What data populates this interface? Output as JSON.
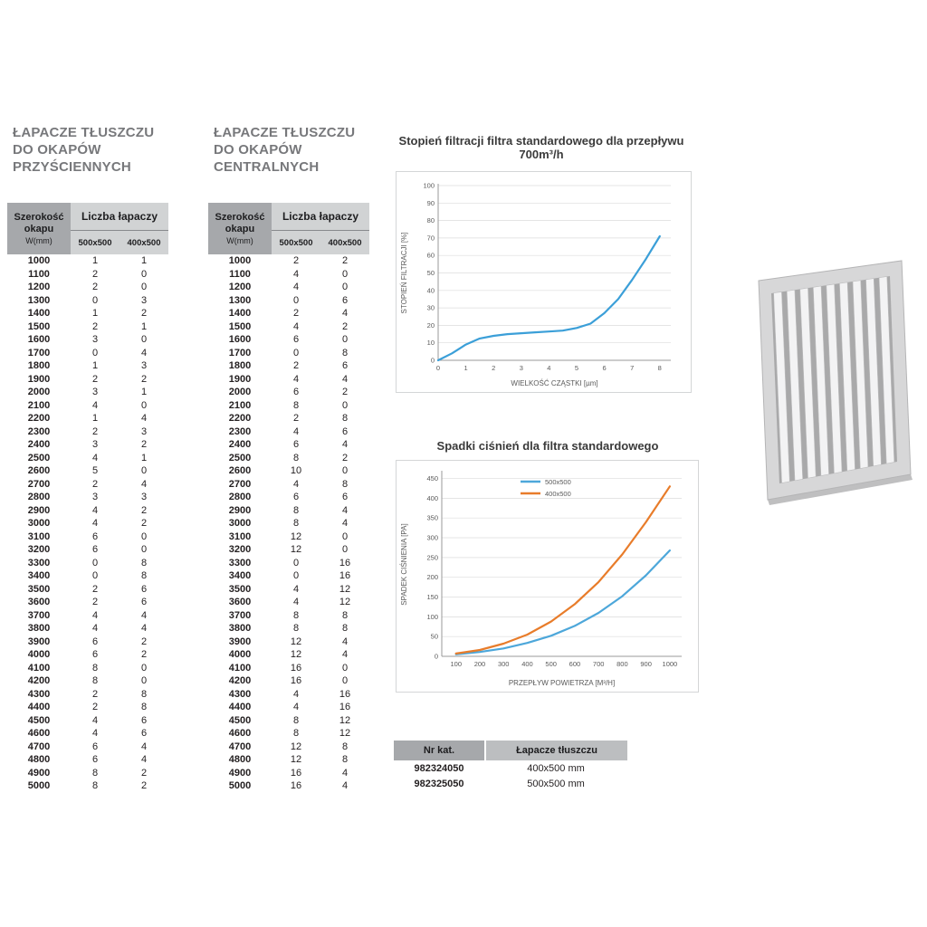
{
  "table_header": {
    "col_width_1": "Szerokość",
    "col_width_2": "okapu",
    "col_width_3": "W(mm)",
    "col_count": "Liczba łapaczy",
    "sub_500": "500x500",
    "sub_400": "400x500"
  },
  "wall_table": {
    "title_lines": [
      "ŁAPACZE TŁUSZCZU",
      "DO OKAPÓW",
      "PRZYŚCIENNYCH"
    ],
    "rows": [
      [
        1000,
        1,
        1
      ],
      [
        1100,
        2,
        0
      ],
      [
        1200,
        2,
        0
      ],
      [
        1300,
        0,
        3
      ],
      [
        1400,
        1,
        2
      ],
      [
        1500,
        2,
        1
      ],
      [
        1600,
        3,
        0
      ],
      [
        1700,
        0,
        4
      ],
      [
        1800,
        1,
        3
      ],
      [
        1900,
        2,
        2
      ],
      [
        2000,
        3,
        1
      ],
      [
        2100,
        4,
        0
      ],
      [
        2200,
        1,
        4
      ],
      [
        2300,
        2,
        3
      ],
      [
        2400,
        3,
        2
      ],
      [
        2500,
        4,
        1
      ],
      [
        2600,
        5,
        0
      ],
      [
        2700,
        2,
        4
      ],
      [
        2800,
        3,
        3
      ],
      [
        2900,
        4,
        2
      ],
      [
        3000,
        4,
        2
      ],
      [
        3100,
        6,
        0
      ],
      [
        3200,
        6,
        0
      ],
      [
        3300,
        0,
        8
      ],
      [
        3400,
        0,
        8
      ],
      [
        3500,
        2,
        6
      ],
      [
        3600,
        2,
        6
      ],
      [
        3700,
        4,
        4
      ],
      [
        3800,
        4,
        4
      ],
      [
        3900,
        6,
        2
      ],
      [
        4000,
        6,
        2
      ],
      [
        4100,
        8,
        0
      ],
      [
        4200,
        8,
        0
      ],
      [
        4300,
        2,
        8
      ],
      [
        4400,
        2,
        8
      ],
      [
        4500,
        4,
        6
      ],
      [
        4600,
        4,
        6
      ],
      [
        4700,
        6,
        4
      ],
      [
        4800,
        6,
        4
      ],
      [
        4900,
        8,
        2
      ],
      [
        5000,
        8,
        2
      ]
    ]
  },
  "central_table": {
    "title_lines": [
      "ŁAPACZE TŁUSZCZU",
      "DO OKAPÓW",
      "CENTRALNYCH"
    ],
    "rows": [
      [
        1000,
        2,
        2
      ],
      [
        1100,
        4,
        0
      ],
      [
        1200,
        4,
        0
      ],
      [
        1300,
        0,
        6
      ],
      [
        1400,
        2,
        4
      ],
      [
        1500,
        4,
        2
      ],
      [
        1600,
        6,
        0
      ],
      [
        1700,
        0,
        8
      ],
      [
        1800,
        2,
        6
      ],
      [
        1900,
        4,
        4
      ],
      [
        2000,
        6,
        2
      ],
      [
        2100,
        8,
        0
      ],
      [
        2200,
        2,
        8
      ],
      [
        2300,
        4,
        6
      ],
      [
        2400,
        6,
        4
      ],
      [
        2500,
        8,
        2
      ],
      [
        2600,
        10,
        0
      ],
      [
        2700,
        4,
        8
      ],
      [
        2800,
        6,
        6
      ],
      [
        2900,
        8,
        4
      ],
      [
        3000,
        8,
        4
      ],
      [
        3100,
        12,
        0
      ],
      [
        3200,
        12,
        0
      ],
      [
        3300,
        0,
        16
      ],
      [
        3400,
        0,
        16
      ],
      [
        3500,
        4,
        12
      ],
      [
        3600,
        4,
        12
      ],
      [
        3700,
        8,
        8
      ],
      [
        3800,
        8,
        8
      ],
      [
        3900,
        12,
        4
      ],
      [
        4000,
        12,
        4
      ],
      [
        4100,
        16,
        0
      ],
      [
        4200,
        16,
        0
      ],
      [
        4300,
        4,
        16
      ],
      [
        4400,
        4,
        16
      ],
      [
        4500,
        8,
        12
      ],
      [
        4600,
        8,
        12
      ],
      [
        4700,
        12,
        8
      ],
      [
        4800,
        12,
        8
      ],
      [
        4900,
        16,
        4
      ],
      [
        5000,
        16,
        4
      ]
    ]
  },
  "catalog_table": {
    "headers": [
      "Nr kat.",
      "Łapacze tłuszczu"
    ],
    "rows": [
      [
        "982324050",
        "400x500 mm"
      ],
      [
        "982325050",
        "500x500 mm"
      ]
    ]
  },
  "product_image": {
    "name": "baffle-grease-filter-photo",
    "frame_color": "#d7d7d8",
    "slat_color": "#f3f3f4"
  },
  "colors": {
    "header_dark_gray": "#a6a8ab",
    "header_light_gray": "#d1d3d4",
    "catalog_header_gray": "#bcbec0",
    "title_gray": "#77787b",
    "series_blue": "#4da7da",
    "series_orange": "#e87c2a"
  },
  "chart_data": [
    {
      "type": "line",
      "title": "Stopień filtracji filtra standardowego dla przepływu 700m³/h",
      "xlabel": "WIELKOŚĆ CZĄSTKI [µm]",
      "ylabel": "STOPIEŃ FILTRACJI [%]",
      "xlim": [
        0,
        8.4
      ],
      "ylim": [
        0,
        100
      ],
      "xticks": [
        0,
        1,
        2,
        3,
        4,
        5,
        6,
        7,
        8
      ],
      "yticks": [
        0,
        10,
        20,
        30,
        40,
        50,
        60,
        70,
        80,
        90,
        100
      ],
      "grid": "horizontal",
      "legend": null,
      "series": [
        {
          "name": "stopień filtracji",
          "color": "#3b9fd8",
          "x": [
            0,
            0.5,
            1,
            1.5,
            2,
            2.5,
            3,
            3.5,
            4,
            4.5,
            5,
            5.5,
            6,
            6.5,
            7,
            7.5,
            8
          ],
          "y": [
            0,
            4,
            9,
            12.5,
            14,
            15,
            15.5,
            16,
            16.5,
            17,
            18.5,
            21,
            27,
            35,
            46,
            58,
            71
          ]
        }
      ]
    },
    {
      "type": "line",
      "title": "Spadki ciśnień dla filtra standardowego",
      "xlabel": "PRZEPŁYW POWIETRZA [M³/H]",
      "ylabel": "SPADEK CIŚNIENIA [PA]",
      "xlim": [
        40,
        1050
      ],
      "ylim": [
        0,
        465
      ],
      "xticks": [
        100,
        200,
        300,
        400,
        500,
        600,
        700,
        800,
        900,
        1000
      ],
      "yticks": [
        0,
        50,
        100,
        150,
        200,
        250,
        300,
        350,
        400,
        450
      ],
      "grid": "horizontal",
      "legend": [
        "500x500",
        "400x500"
      ],
      "legend_position": "top-center",
      "series": [
        {
          "name": "500x500",
          "color": "#4da7da",
          "x": [
            100,
            200,
            300,
            400,
            500,
            600,
            700,
            800,
            900,
            1000
          ],
          "y": [
            5,
            11,
            20,
            34,
            52,
            77,
            110,
            152,
            205,
            268
          ]
        },
        {
          "name": "400x500",
          "color": "#e87c2a",
          "x": [
            100,
            200,
            300,
            400,
            500,
            600,
            700,
            800,
            900,
            1000
          ],
          "y": [
            7,
            16,
            32,
            55,
            88,
            132,
            188,
            258,
            340,
            430
          ]
        }
      ]
    }
  ]
}
